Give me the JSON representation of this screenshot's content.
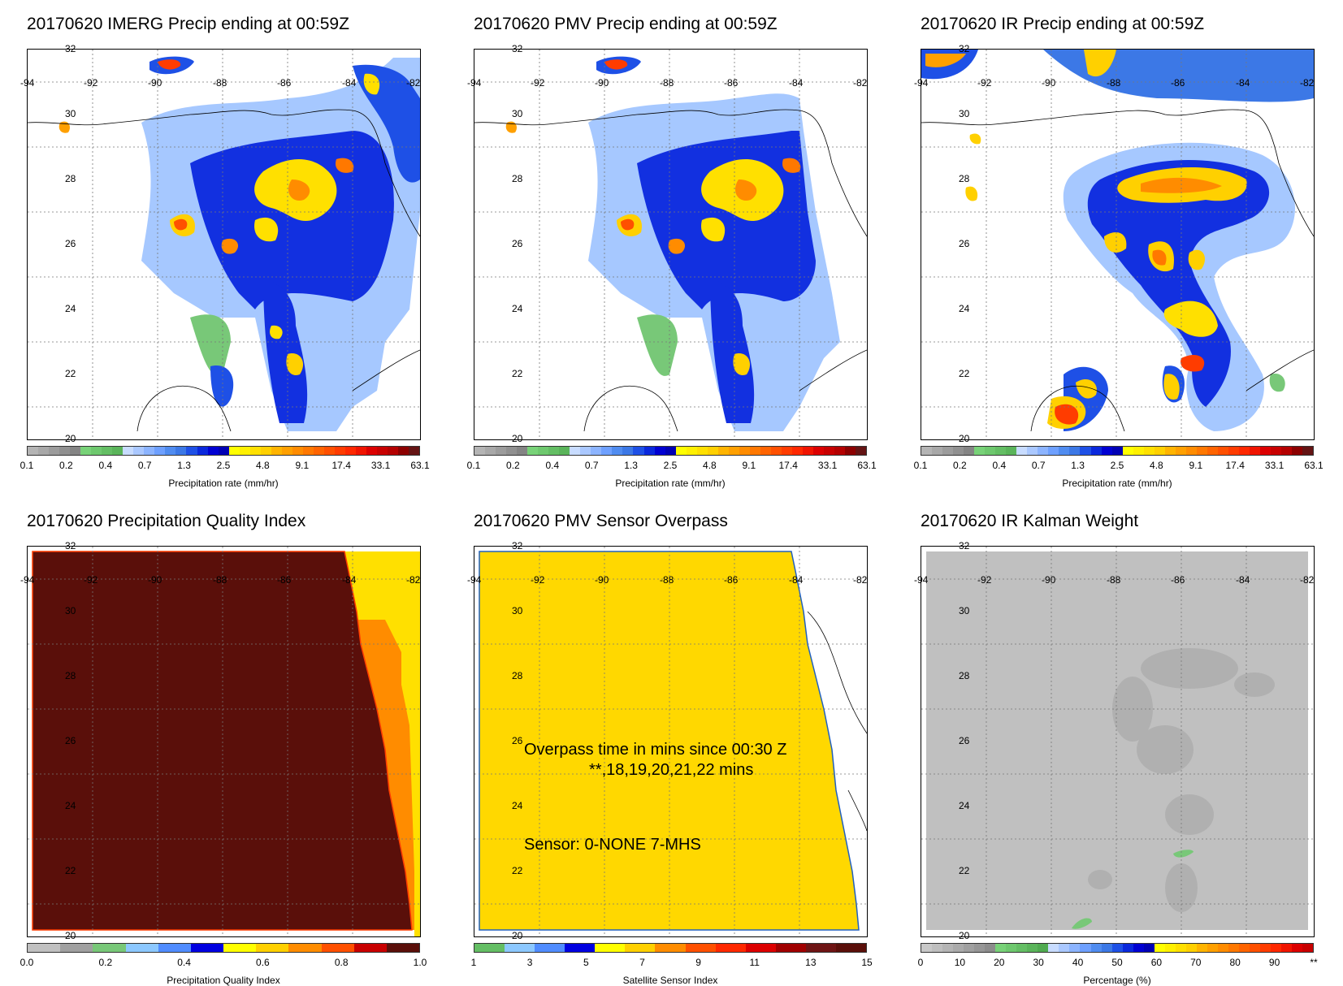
{
  "panels": [
    {
      "id": "imerg",
      "title": "20170620 IMERG Precip ending at 00:59Z",
      "colorbar": {
        "title": "Precipitation rate (mm/hr)",
        "labels": [
          "0.1",
          "0.2",
          "0.4",
          "0.7",
          "1.3",
          "2.5",
          "4.8",
          "9.1",
          "17.4",
          "33.1",
          "63.1"
        ],
        "colors": [
          "#b4b4b4",
          "#a8a8a8",
          "#9c9c9c",
          "#909090",
          "#848484",
          "#78d278",
          "#6ec86e",
          "#64be64",
          "#5ab45a",
          "#c8dcff",
          "#aac8ff",
          "#8cb4ff",
          "#6ea0ff",
          "#508cf0",
          "#3c78e6",
          "#1e50e6",
          "#0a28dc",
          "#0000d2",
          "#0000b4",
          "#ffff00",
          "#fff000",
          "#ffe000",
          "#ffd000",
          "#ffb400",
          "#ffa000",
          "#ff8c00",
          "#ff7800",
          "#ff6400",
          "#ff5000",
          "#ff3c00",
          "#ff2800",
          "#f01400",
          "#dc0000",
          "#c80000",
          "#b40000",
          "#8c0000",
          "#641414"
        ]
      }
    },
    {
      "id": "pmv",
      "title": "20170620 PMV Precip ending at 00:59Z",
      "colorbar": {
        "title": "Precipitation rate (mm/hr)",
        "labels": [
          "0.1",
          "0.2",
          "0.4",
          "0.7",
          "1.3",
          "2.5",
          "4.8",
          "9.1",
          "17.4",
          "33.1",
          "63.1"
        ],
        "colors": [
          "#b4b4b4",
          "#a8a8a8",
          "#9c9c9c",
          "#909090",
          "#848484",
          "#78d278",
          "#6ec86e",
          "#64be64",
          "#5ab45a",
          "#c8dcff",
          "#aac8ff",
          "#8cb4ff",
          "#6ea0ff",
          "#508cf0",
          "#3c78e6",
          "#1e50e6",
          "#0a28dc",
          "#0000d2",
          "#0000b4",
          "#ffff00",
          "#fff000",
          "#ffe000",
          "#ffd000",
          "#ffb400",
          "#ffa000",
          "#ff8c00",
          "#ff7800",
          "#ff6400",
          "#ff5000",
          "#ff3c00",
          "#ff2800",
          "#f01400",
          "#dc0000",
          "#c80000",
          "#b40000",
          "#8c0000",
          "#641414"
        ]
      }
    },
    {
      "id": "ir",
      "title": "20170620 IR Precip ending at 00:59Z",
      "colorbar": {
        "title": "Precipitation rate (mm/hr)",
        "labels": [
          "0.1",
          "0.2",
          "0.4",
          "0.7",
          "1.3",
          "2.5",
          "4.8",
          "9.1",
          "17.4",
          "33.1",
          "63.1"
        ],
        "colors": [
          "#b4b4b4",
          "#a8a8a8",
          "#9c9c9c",
          "#909090",
          "#848484",
          "#78d278",
          "#6ec86e",
          "#64be64",
          "#5ab45a",
          "#c8dcff",
          "#aac8ff",
          "#8cb4ff",
          "#6ea0ff",
          "#508cf0",
          "#3c78e6",
          "#1e50e6",
          "#0a28dc",
          "#0000d2",
          "#0000b4",
          "#ffff00",
          "#fff000",
          "#ffe000",
          "#ffd000",
          "#ffb400",
          "#ffa000",
          "#ff8c00",
          "#ff7800",
          "#ff6400",
          "#ff5000",
          "#ff3c00",
          "#ff2800",
          "#f01400",
          "#dc0000",
          "#c80000",
          "#b40000",
          "#8c0000",
          "#641414"
        ]
      }
    },
    {
      "id": "pqi",
      "title": "20170620 Precipitation Quality Index",
      "colorbar": {
        "title": "Precipitation Quality Index",
        "labels": [
          "0.0",
          "0.2",
          "0.4",
          "0.6",
          "0.8",
          "1.0"
        ],
        "colors": [
          "#c0c0c0",
          "#a0a0a0",
          "#78c878",
          "#8cc8ff",
          "#508cff",
          "#0000e0",
          "#ffff00",
          "#ffd000",
          "#ff8c00",
          "#ff5000",
          "#c80000",
          "#5a0f0a"
        ]
      }
    },
    {
      "id": "overpass",
      "title": "20170620 PMV Sensor Overpass",
      "overlay": {
        "line1": "Overpass time in mins since 00:30 Z",
        "line2": "**,18,19,20,21,22 mins",
        "sensor": "Sensor:   0-NONE  7-MHS"
      },
      "colorbar": {
        "title": "Satellite Sensor Index",
        "labels": [
          "1",
          "3",
          "5",
          "7",
          "9",
          "11",
          "13",
          "15"
        ],
        "colors": [
          "#64be64",
          "#8cc8ff",
          "#508cff",
          "#0000e0",
          "#ffff00",
          "#ffd000",
          "#ff8c00",
          "#ff5000",
          "#ff2800",
          "#dc0000",
          "#a00000",
          "#6e1414",
          "#5a0f0a"
        ]
      }
    },
    {
      "id": "kalman",
      "title": "20170620 IR Kalman Weight",
      "colorbar": {
        "title": "Percentage (%)",
        "labels": [
          "0",
          "10",
          "20",
          "30",
          "40",
          "50",
          "60",
          "70",
          "80",
          "90",
          "**"
        ],
        "colors": [
          "#c8c8c8",
          "#bebebe",
          "#b4b4b4",
          "#aaaaaa",
          "#a0a0a0",
          "#969696",
          "#8c8c8c",
          "#78d278",
          "#6ec86e",
          "#64be64",
          "#5ab45a",
          "#50aa50",
          "#c8dcff",
          "#aac8ff",
          "#8cb4ff",
          "#6ea0ff",
          "#508cf0",
          "#3c78e6",
          "#1e50e6",
          "#0a28dc",
          "#0000d2",
          "#0000b4",
          "#ffff00",
          "#fff000",
          "#ffe000",
          "#ffd000",
          "#ffb400",
          "#ffa000",
          "#ff8c00",
          "#ff7800",
          "#ff6400",
          "#ff5000",
          "#ff3c00",
          "#ff2800",
          "#f01400",
          "#dc0000",
          "#c80000"
        ]
      }
    }
  ],
  "axes": {
    "lon_labels": [
      "-94",
      "-92",
      "-90",
      "-88",
      "-86",
      "-84",
      "-82"
    ],
    "lat_labels": [
      "32",
      "30",
      "28",
      "26",
      "24",
      "22",
      "20"
    ]
  }
}
